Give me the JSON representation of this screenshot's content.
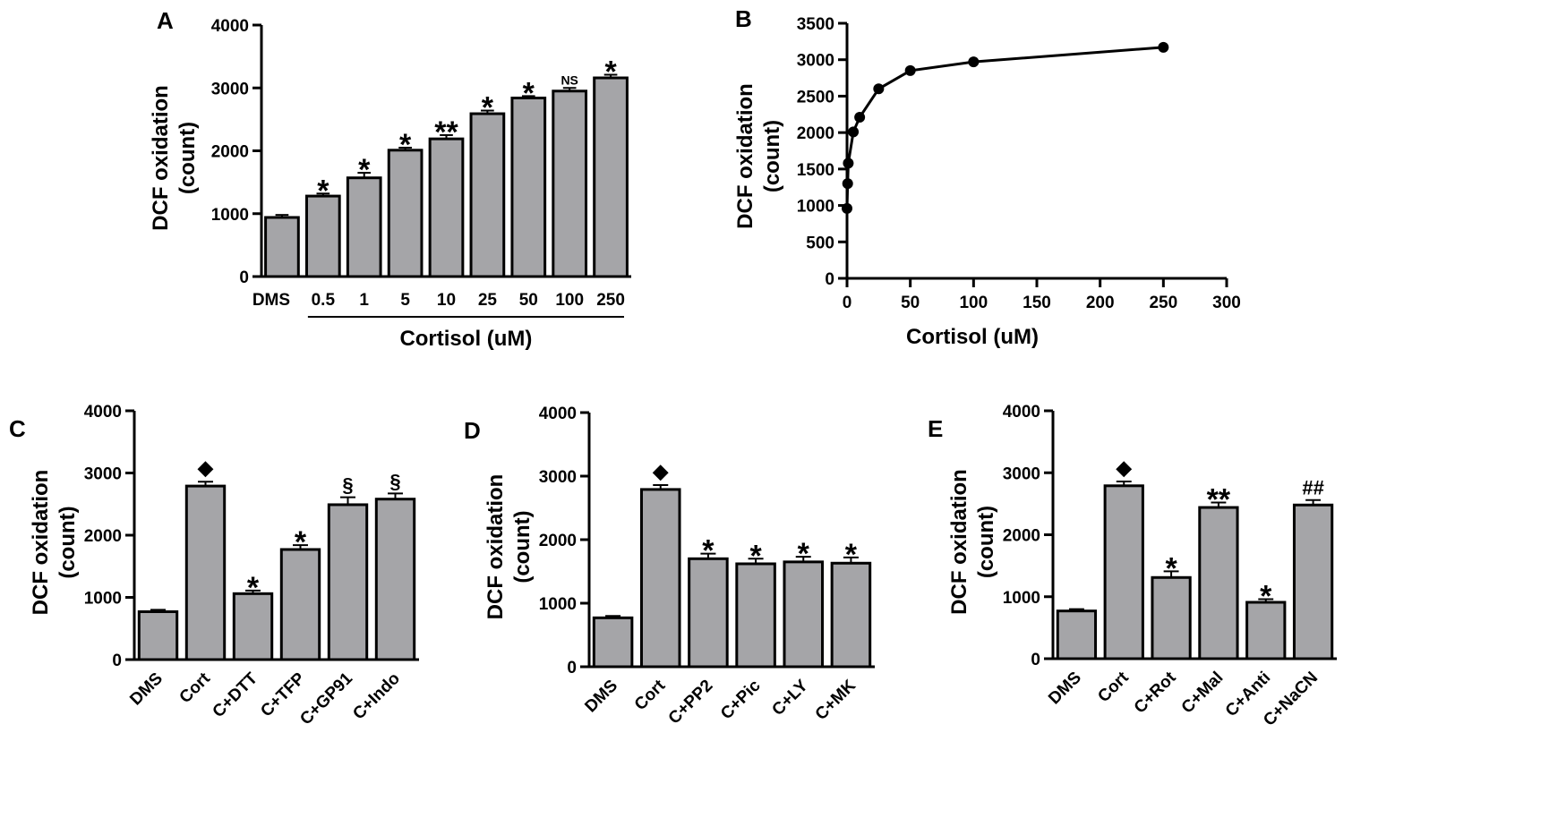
{
  "chart_data": [
    {
      "id": "A",
      "type": "bar",
      "panel_label": "A",
      "ylabel_line1": "DCF oxidation",
      "ylabel_line2": "(count)",
      "group_label": "Cortisol (uM)",
      "ylim": [
        0,
        4000
      ],
      "yticks": [
        0,
        1000,
        2000,
        3000,
        4000
      ],
      "ytick_labels": [
        "0",
        "1000",
        "2000",
        "3000",
        "4000"
      ],
      "categories": [
        "DMS",
        "0.5",
        "1",
        "5",
        "10",
        "25",
        "50",
        "100",
        "250"
      ],
      "values": [
        940,
        1280,
        1570,
        2010,
        2190,
        2590,
        2840,
        2950,
        3160
      ],
      "errors": [
        40,
        40,
        80,
        40,
        60,
        50,
        30,
        50,
        50
      ],
      "annotations": [
        "",
        "*",
        "*",
        "*",
        "**",
        "*",
        "*",
        "NS",
        "*"
      ]
    },
    {
      "id": "B",
      "type": "line",
      "panel_label": "B",
      "ylabel_line1": "DCF oxidation",
      "ylabel_line2": "(count)",
      "xlabel": "Cortisol (uM)",
      "xlim": [
        0,
        300
      ],
      "ylim": [
        0,
        3500
      ],
      "xticks": [
        0,
        50,
        100,
        150,
        200,
        250,
        300
      ],
      "xtick_labels": [
        "0",
        "50",
        "100",
        "150",
        "200",
        "250",
        "300"
      ],
      "yticks": [
        0,
        500,
        1000,
        1500,
        2000,
        2500,
        3000,
        3500
      ],
      "ytick_labels": [
        "0",
        "500",
        "1000",
        "1500",
        "2000",
        "2500",
        "3000",
        "3500"
      ],
      "x": [
        0,
        0.5,
        1,
        5,
        10,
        25,
        50,
        100,
        250
      ],
      "y": [
        960,
        1300,
        1580,
        2010,
        2210,
        2600,
        2850,
        2970,
        3170
      ]
    },
    {
      "id": "C",
      "type": "bar",
      "panel_label": "C",
      "ylabel_line1": "DCF oxidation",
      "ylabel_line2": "(count)",
      "ylim": [
        0,
        4000
      ],
      "yticks": [
        0,
        1000,
        2000,
        3000,
        4000
      ],
      "ytick_labels": [
        "0",
        "1000",
        "2000",
        "3000",
        "4000"
      ],
      "categories": [
        "DMS",
        "Cort",
        "C+DTT",
        "C+TFP",
        "C+GP91",
        "C+Indo"
      ],
      "values": [
        770,
        2790,
        1060,
        1770,
        2490,
        2580
      ],
      "errors": [
        30,
        70,
        50,
        70,
        120,
        90
      ],
      "annotations": [
        "",
        "◆",
        "*",
        "*",
        "§",
        "§"
      ]
    },
    {
      "id": "D",
      "type": "bar",
      "panel_label": "D",
      "ylabel_line1": "DCF oxidation",
      "ylabel_line2": "(count)",
      "ylim": [
        0,
        4000
      ],
      "yticks": [
        0,
        1000,
        2000,
        3000,
        4000
      ],
      "ytick_labels": [
        "0",
        "1000",
        "2000",
        "3000",
        "4000"
      ],
      "categories": [
        "DMS",
        "Cort",
        "C+PP2",
        "C+Pic",
        "C+LY",
        "C+MK"
      ],
      "values": [
        770,
        2790,
        1700,
        1620,
        1650,
        1630
      ],
      "errors": [
        30,
        70,
        80,
        80,
        80,
        90
      ],
      "annotations": [
        "",
        "◆",
        "*",
        "*",
        "*",
        "*"
      ]
    },
    {
      "id": "E",
      "type": "bar",
      "panel_label": "E",
      "ylabel_line1": "DCF oxidation",
      "ylabel_line2": "(count)",
      "ylim": [
        0,
        4000
      ],
      "yticks": [
        0,
        1000,
        2000,
        3000,
        4000
      ],
      "ytick_labels": [
        "0",
        "1000",
        "2000",
        "3000",
        "4000"
      ],
      "categories": [
        "DMS",
        "Cort",
        "C+Rot",
        "C+Mal",
        "C+Anti",
        "C+NaCN"
      ],
      "values": [
        770,
        2790,
        1310,
        2440,
        910,
        2480
      ],
      "errors": [
        30,
        70,
        100,
        80,
        50,
        80
      ],
      "annotations": [
        "",
        "◆",
        "*",
        "**",
        "*",
        "##"
      ]
    }
  ]
}
